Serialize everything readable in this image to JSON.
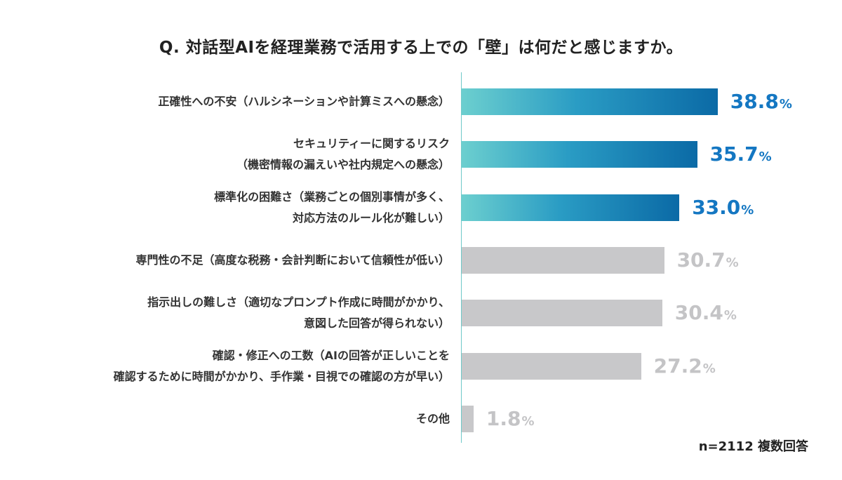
{
  "chart_data": {
    "type": "bar",
    "orientation": "horizontal",
    "title": "Q. 対話型AIを経理業務で活用する上での「壁」は何だと感じますか。",
    "categories": [
      [
        "正確性への不安（ハルシネーションや計算ミスへの懸念）"
      ],
      [
        "セキュリティーに関するリスク",
        "（機密情報の漏えいや社内規定への懸念）"
      ],
      [
        "標準化の困難さ（業務ごとの個別事情が多く、",
        "対応方法のルール化が難しい）"
      ],
      [
        "専門性の不足（高度な税務・会計判断において信頼性が低い）"
      ],
      [
        "指示出しの難しさ（適切なプロンプト作成に時間がかかり、",
        "意図した回答が得られない）"
      ],
      [
        "確認・修正への工数（AIの回答が正しいことを",
        "確認するために時間がかかり、手作業・目視での確認の方が早い）"
      ],
      [
        "その他"
      ]
    ],
    "values": [
      38.8,
      35.7,
      33.0,
      30.7,
      30.4,
      27.2,
      1.8
    ],
    "value_labels": [
      "38.8",
      "35.7",
      "33.0",
      "30.7",
      "30.4",
      "27.2",
      "1.8"
    ],
    "highlighted": [
      true,
      true,
      true,
      false,
      false,
      false,
      false
    ],
    "unit": "%",
    "xlim": [
      0,
      40
    ],
    "colors": {
      "highlight_start": "#6ccfcf",
      "highlight_end": "#0b6aa6",
      "highlight_text": "#1477c2",
      "gray_bar": "#c8c8ca",
      "gray_text": "#c4c4c6",
      "axis": "#6fc9c9"
    }
  },
  "footnote": "n=2112 複数回答"
}
